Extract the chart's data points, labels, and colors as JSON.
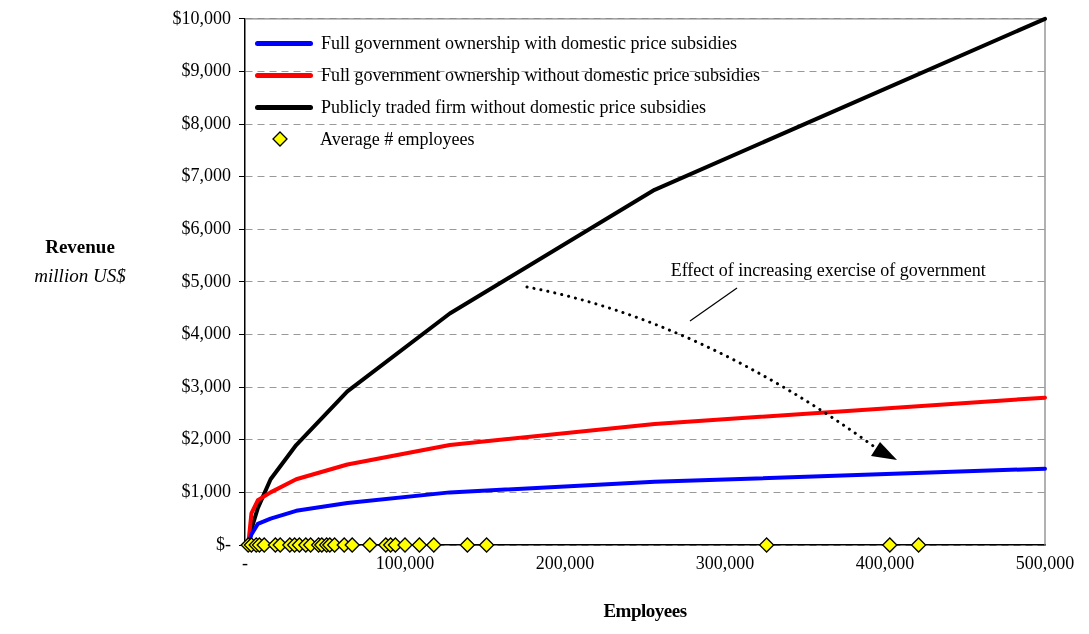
{
  "chart_data": {
    "type": "line",
    "xlabel": "Employees",
    "ylabel": "Revenue\nmillion US$",
    "xlim": [
      0,
      500000
    ],
    "xticks": [
      {
        "value": 0,
        "label": "-"
      },
      {
        "value": 100000,
        "label": "100,000"
      },
      {
        "value": 200000,
        "label": "200,000"
      },
      {
        "value": 300000,
        "label": "300,000"
      },
      {
        "value": 400000,
        "label": "400,000"
      },
      {
        "value": 500000,
        "label": "500,000"
      }
    ],
    "ylim": [
      0,
      10000
    ],
    "yticks": [
      {
        "value": 0,
        "label": "$-"
      },
      {
        "value": 1000,
        "label": "$1,000"
      },
      {
        "value": 2000,
        "label": "$2,000"
      },
      {
        "value": 3000,
        "label": "$3,000"
      },
      {
        "value": 4000,
        "label": "$4,000"
      },
      {
        "value": 5000,
        "label": "$5,000"
      },
      {
        "value": 6000,
        "label": "$6,000"
      },
      {
        "value": 7000,
        "label": "$7,000"
      },
      {
        "value": 8000,
        "label": "$8,000"
      },
      {
        "value": 9000,
        "label": "$9,000"
      },
      {
        "value": 10000,
        "label": "$10,000"
      }
    ],
    "grid": "y",
    "legend": "top left",
    "line_style": "solid",
    "annotations": [
      "Effect of increasing exercise of government"
    ],
    "series": [
      {
        "name": "Full government ownership with domestic price subsidies",
        "marker": "none",
        "color": "#0000ff",
        "x": [
          2000,
          4000,
          8000,
          16000,
          32000,
          64000,
          128000,
          256000,
          500000
        ],
        "values": [
          0,
          200,
          400,
          500,
          650,
          800,
          1000,
          1200,
          1450
        ]
      },
      {
        "name": "Full government ownership without domestic price subsidies",
        "marker": "none",
        "color": "#ff0000",
        "x": [
          2000,
          4000,
          8000,
          16000,
          32000,
          64000,
          128000,
          256000,
          500000
        ],
        "values": [
          0,
          600,
          850,
          1000,
          1250,
          1530,
          1900,
          2300,
          2800
        ]
      },
      {
        "name": "Publicly traded firm without domestic price subsidies",
        "marker": "none",
        "color": "#000000",
        "x": [
          2000,
          4000,
          8000,
          16000,
          32000,
          64000,
          128000,
          256000,
          500000
        ],
        "values": [
          0,
          300,
          700,
          1250,
          1900,
          2920,
          4400,
          6750,
          10000
        ]
      },
      {
        "name": "Average # employees",
        "type": "scatter",
        "marker": "diamond",
        "color": "#ffff00",
        "x": [
          2000,
          4000,
          7000,
          9000,
          12000,
          19000,
          22000,
          28000,
          31000,
          34000,
          38000,
          41000,
          46000,
          48000,
          51000,
          53000,
          56000,
          62000,
          67000,
          78000,
          88000,
          91000,
          94000,
          100000,
          109000,
          118000,
          139000,
          151000,
          326000,
          403000,
          421000
        ],
        "values": [
          0,
          0,
          0,
          0,
          0,
          0,
          0,
          0,
          0,
          0,
          0,
          0,
          0,
          0,
          0,
          0,
          0,
          0,
          0,
          0,
          0,
          0,
          0,
          0,
          0,
          0,
          0,
          0,
          0,
          0,
          0
        ]
      }
    ]
  }
}
